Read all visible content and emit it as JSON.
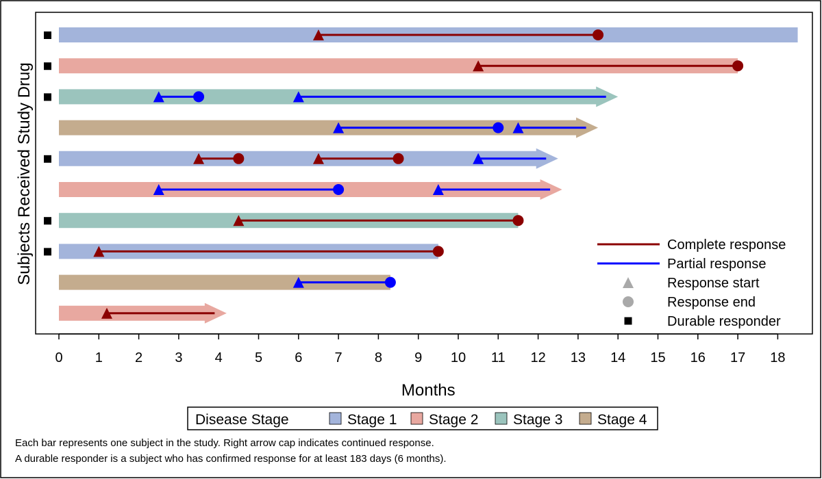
{
  "chart_data": {
    "type": "swimmer",
    "title": "",
    "xlabel": "Months",
    "ylabel": "Subjects Received Study Drug",
    "xlim": [
      0,
      18.5
    ],
    "xticks": [
      0,
      1,
      2,
      3,
      4,
      5,
      6,
      7,
      8,
      9,
      10,
      11,
      12,
      13,
      14,
      15,
      16,
      17,
      18
    ],
    "stage_legend": {
      "title": "Disease Stage",
      "items": [
        {
          "name": "Stage 1",
          "color": "#A3B4DB"
        },
        {
          "name": "Stage 2",
          "color": "#E8A8A0"
        },
        {
          "name": "Stage 3",
          "color": "#9BC4BD"
        },
        {
          "name": "Stage 4",
          "color": "#C4AC8E"
        }
      ]
    },
    "response_legend": [
      {
        "label": "Complete response",
        "kind": "line",
        "color": "#8B0000"
      },
      {
        "label": "Partial response",
        "kind": "line",
        "color": "#0000FF"
      },
      {
        "label": "Response start",
        "kind": "triangle",
        "color": "#A9A9A9"
      },
      {
        "label": "Response end",
        "kind": "circle",
        "color": "#A9A9A9"
      },
      {
        "label": "Durable responder",
        "kind": "square",
        "color": "#000000"
      }
    ],
    "subjects": [
      {
        "stage": 1,
        "end": 18.5,
        "continued": false,
        "durable": true,
        "responses": [
          {
            "type": "complete",
            "start": 6.5,
            "end": 13.5,
            "ongoing": false
          }
        ]
      },
      {
        "stage": 2,
        "end": 17,
        "continued": false,
        "durable": true,
        "responses": [
          {
            "type": "complete",
            "start": 10.5,
            "end": 17,
            "ongoing": false
          }
        ]
      },
      {
        "stage": 3,
        "end": 14,
        "continued": true,
        "durable": true,
        "responses": [
          {
            "type": "partial",
            "start": 2.5,
            "end": 3.5,
            "ongoing": false
          },
          {
            "type": "partial",
            "start": 6,
            "end": 13.7,
            "ongoing": true
          }
        ]
      },
      {
        "stage": 4,
        "end": 13.5,
        "continued": true,
        "durable": false,
        "responses": [
          {
            "type": "partial",
            "start": 7,
            "end": 11,
            "ongoing": false
          },
          {
            "type": "partial",
            "start": 11.5,
            "end": 13.2,
            "ongoing": true
          }
        ]
      },
      {
        "stage": 1,
        "end": 12.5,
        "continued": true,
        "durable": true,
        "responses": [
          {
            "type": "complete",
            "start": 3.5,
            "end": 4.5,
            "ongoing": false
          },
          {
            "type": "complete",
            "start": 6.5,
            "end": 8.5,
            "ongoing": false
          },
          {
            "type": "partial",
            "start": 10.5,
            "end": 12.2,
            "ongoing": true
          }
        ]
      },
      {
        "stage": 2,
        "end": 12.6,
        "continued": true,
        "durable": false,
        "responses": [
          {
            "type": "partial",
            "start": 2.5,
            "end": 7,
            "ongoing": false
          },
          {
            "type": "partial",
            "start": 9.5,
            "end": 12.3,
            "ongoing": true
          }
        ]
      },
      {
        "stage": 3,
        "end": 11.5,
        "continued": false,
        "durable": true,
        "responses": [
          {
            "type": "complete",
            "start": 4.5,
            "end": 11.5,
            "ongoing": false
          }
        ]
      },
      {
        "stage": 1,
        "end": 9.5,
        "continued": false,
        "durable": true,
        "responses": [
          {
            "type": "complete",
            "start": 1,
            "end": 9.5,
            "ongoing": false
          }
        ]
      },
      {
        "stage": 4,
        "end": 8.3,
        "continued": false,
        "durable": false,
        "responses": [
          {
            "type": "partial",
            "start": 6,
            "end": 8.3,
            "ongoing": false
          }
        ]
      },
      {
        "stage": 2,
        "end": 4.2,
        "continued": true,
        "durable": false,
        "responses": [
          {
            "type": "complete",
            "start": 1.2,
            "end": 3.9,
            "ongoing": true
          }
        ]
      }
    ],
    "footnotes": [
      "Each bar represents one subject in the study.  Right arrow cap indicates continued response.",
      "A durable responder is a subject who has confirmed response for at least 183 days (6 months)."
    ]
  }
}
